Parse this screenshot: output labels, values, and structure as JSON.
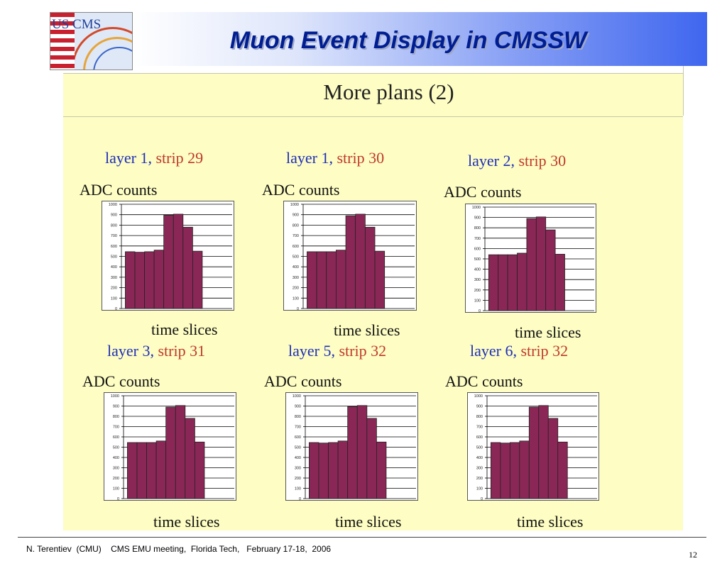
{
  "slide": {
    "title": "Muon Event Display in CMSSW",
    "subtitle": "More plans (2)",
    "logo_text": "US CMS",
    "footer": "N. Terentiev  (CMU)    CMS EMU meeting,  Florida Tech,   February 17-18,  2006",
    "page_number": "12"
  },
  "colors": {
    "bar": "#8b2756",
    "layer_text": "#1f2fb8",
    "strip_text": "#c0392b",
    "panel": "#fdfdc4"
  },
  "chart_data": [
    {
      "type": "bar",
      "layer": "layer 1,",
      "strip": "strip 29",
      "ylabel": "ADC counts",
      "xlabel": "time slices",
      "yticks": [
        "0",
        "100",
        "200",
        "300",
        "400",
        "500",
        "600",
        "700",
        "800",
        "900",
        "1000"
      ],
      "ylim": [
        0,
        1000
      ],
      "grid": true,
      "values": [
        545,
        540,
        545,
        560,
        895,
        905,
        780,
        550
      ]
    },
    {
      "type": "bar",
      "layer": "layer 1,",
      "strip": "strip 30",
      "ylabel": "ADC counts",
      "xlabel": "time slices",
      "yticks": [
        "0",
        "100",
        "200",
        "300",
        "400",
        "500",
        "600",
        "700",
        "800",
        "900",
        "1000"
      ],
      "ylim": [
        0,
        1000
      ],
      "grid": true,
      "values": [
        545,
        545,
        545,
        560,
        890,
        905,
        780,
        550
      ]
    },
    {
      "type": "bar",
      "layer": "layer 2,",
      "strip": "strip 30",
      "ylabel": "ADC counts",
      "xlabel": "time slices",
      "yticks": [
        "0",
        "100",
        "200",
        "300",
        "400",
        "500",
        "600",
        "700",
        "800",
        "900",
        "1000"
      ],
      "ylim": [
        0,
        1000
      ],
      "grid": true,
      "values": [
        540,
        540,
        540,
        555,
        890,
        905,
        780,
        545
      ]
    },
    {
      "type": "bar",
      "layer": "layer 3,",
      "strip": "strip 31",
      "ylabel": "ADC counts",
      "xlabel": "time slices",
      "yticks": [
        "0",
        "100",
        "200",
        "300",
        "400",
        "500",
        "600",
        "700",
        "800",
        "900",
        "1000"
      ],
      "ylim": [
        0,
        1000
      ],
      "grid": true,
      "values": [
        545,
        545,
        545,
        560,
        890,
        905,
        780,
        550
      ]
    },
    {
      "type": "bar",
      "layer": "layer 5,",
      "strip": "strip 32",
      "ylabel": "ADC counts",
      "xlabel": "time slices",
      "yticks": [
        "0",
        "100",
        "200",
        "300",
        "400",
        "500",
        "600",
        "700",
        "800",
        "900",
        "1000"
      ],
      "ylim": [
        0,
        1000
      ],
      "grid": true,
      "values": [
        545,
        540,
        545,
        560,
        895,
        905,
        780,
        550
      ]
    },
    {
      "type": "bar",
      "layer": "layer 6,",
      "strip": "strip 32",
      "ylabel": "ADC counts",
      "xlabel": "time slices",
      "yticks": [
        "0",
        "100",
        "200",
        "300",
        "400",
        "500",
        "600",
        "700",
        "800",
        "900",
        "1000"
      ],
      "ylim": [
        0,
        1000
      ],
      "grid": true,
      "values": [
        545,
        540,
        545,
        560,
        890,
        905,
        780,
        550
      ]
    }
  ]
}
